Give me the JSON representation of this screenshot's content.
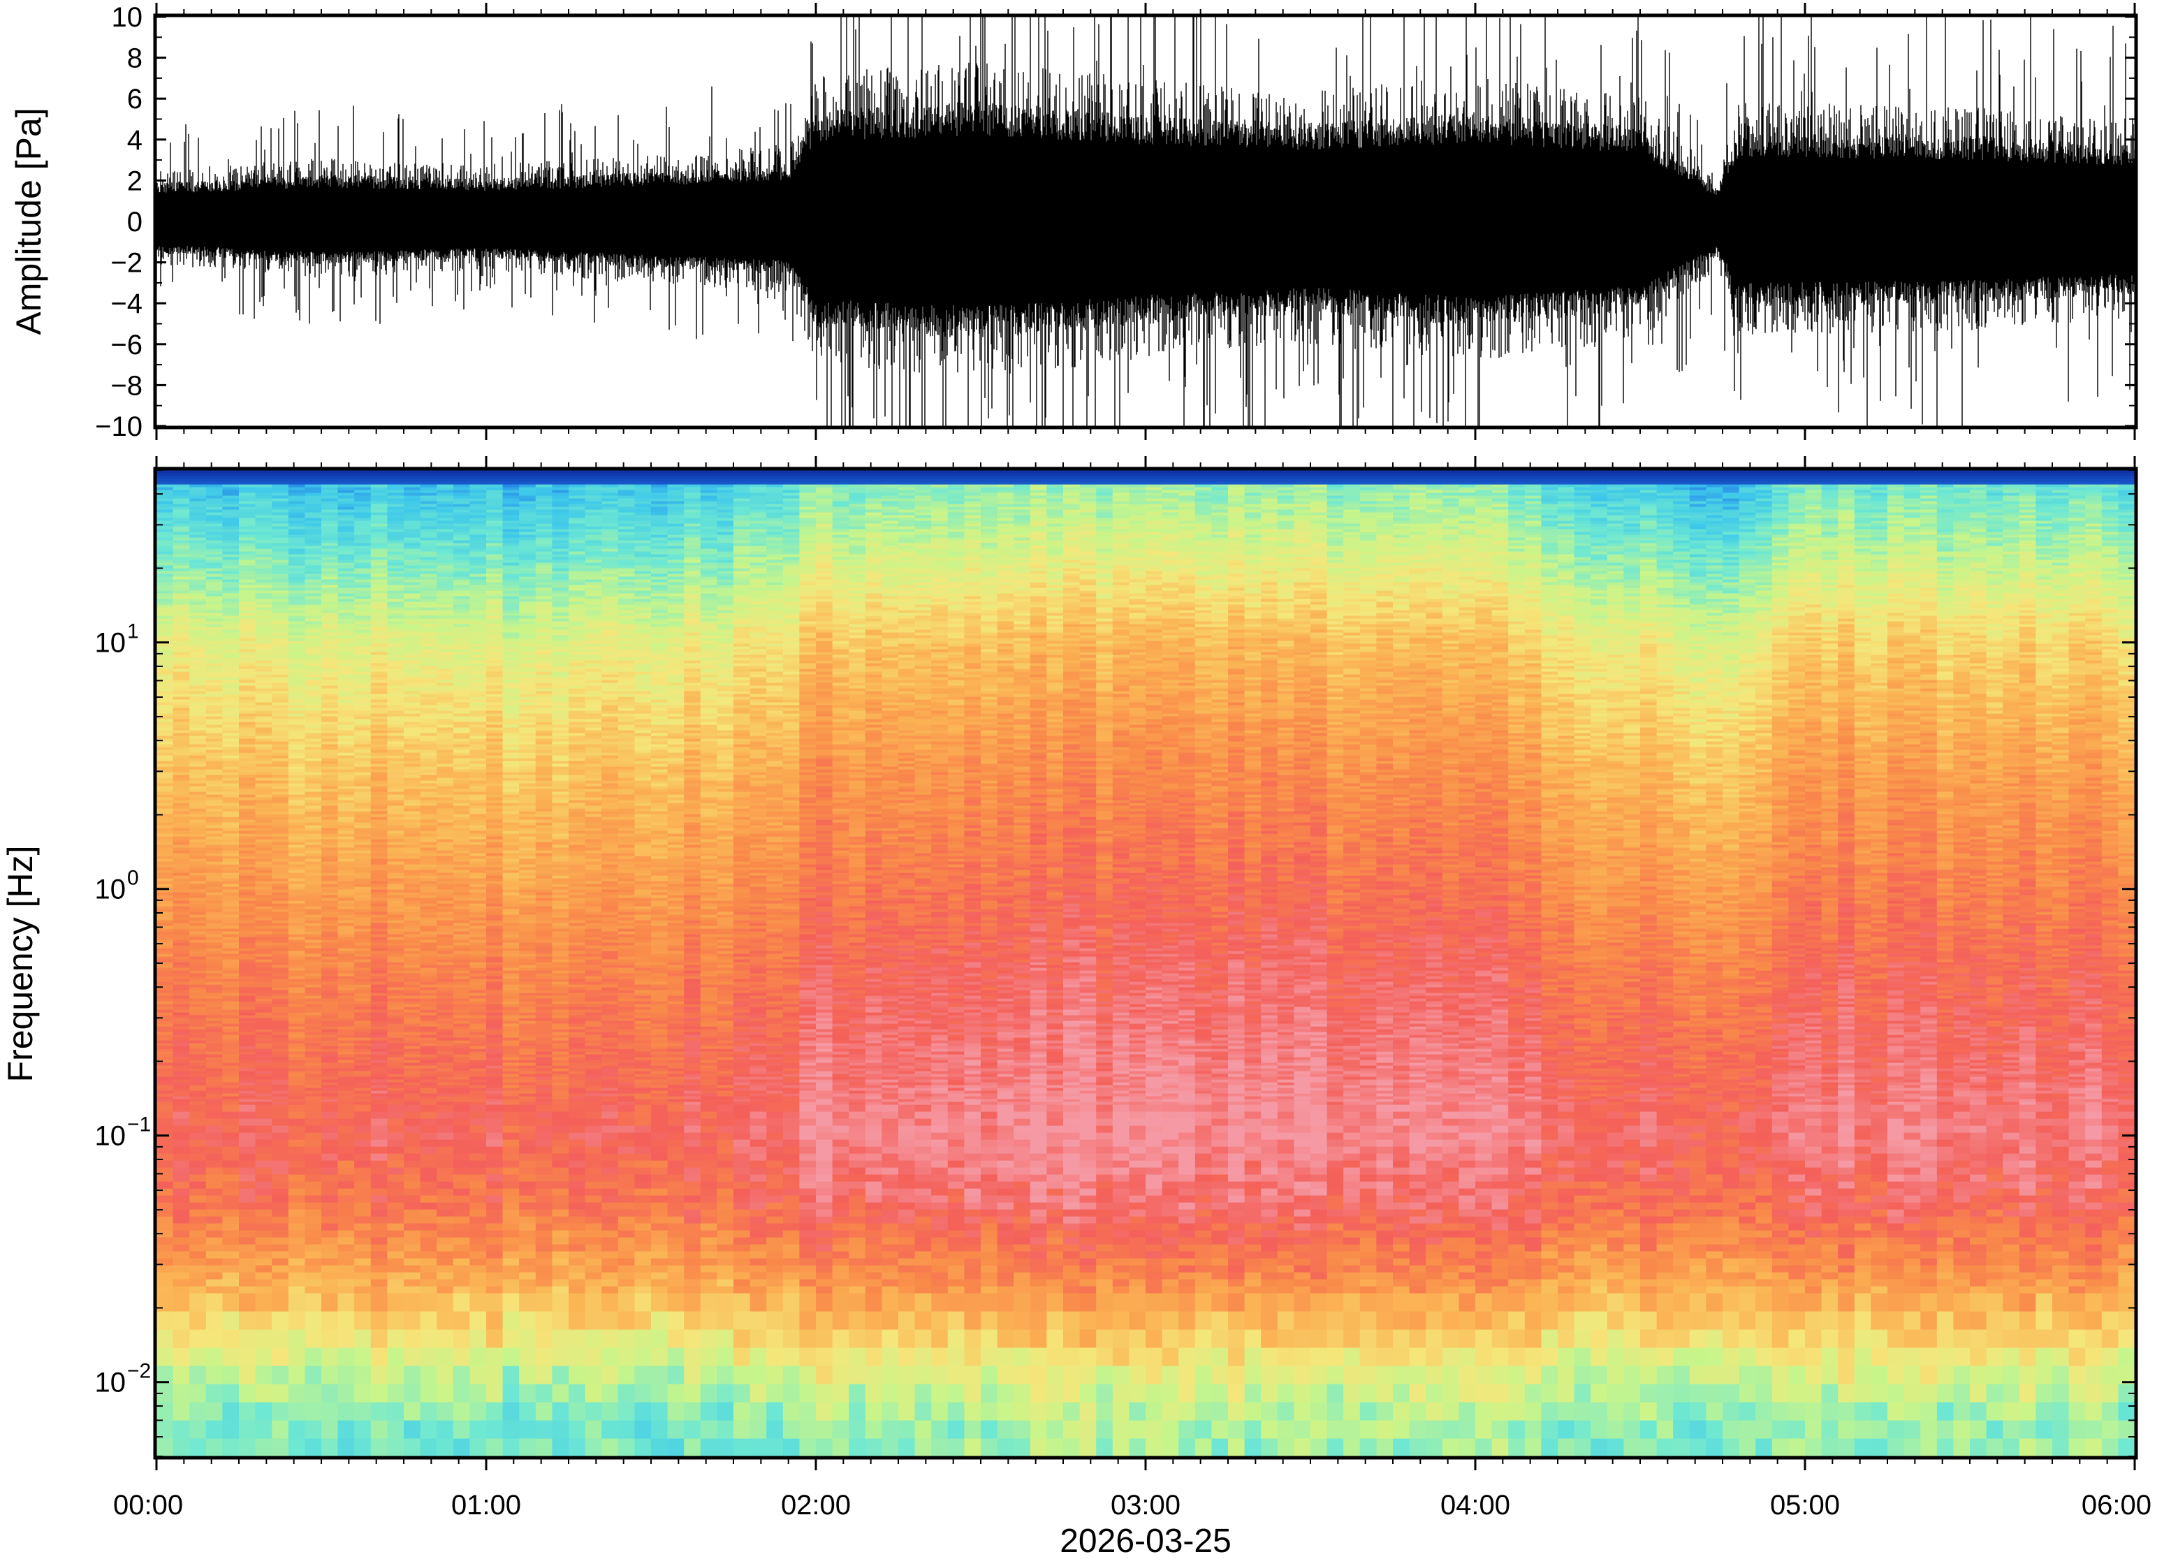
{
  "figure": {
    "date_label": "2026-03-25"
  },
  "chart_data": [
    {
      "type": "line",
      "panel": "waveform",
      "ylabel": "Amplitude [Pa]",
      "ylim": [
        -10,
        10
      ],
      "yticks": [
        -10,
        -8,
        -6,
        -4,
        -2,
        0,
        2,
        4,
        6,
        8,
        10
      ],
      "ytick_labels": [
        "−10",
        "−8",
        "−6",
        "−4",
        "−2",
        "0",
        "2",
        "4",
        "6",
        "8",
        "10"
      ],
      "x_range": [
        "00:00",
        "06:00"
      ],
      "grid": false,
      "series": [
        {
          "envelope": [
            {
              "time": "00:00",
              "min": -1.5,
              "max": 1.8
            },
            {
              "time": "00:30",
              "min": -2.0,
              "max": 2.2
            },
            {
              "time": "01:00",
              "min": -1.7,
              "max": 2.0
            },
            {
              "time": "01:30",
              "min": -2.2,
              "max": 2.3
            },
            {
              "time": "01:55",
              "min": -2.5,
              "max": 2.7
            },
            {
              "time": "02:00",
              "min": -5.0,
              "max": 5.2
            },
            {
              "time": "02:30",
              "min": -5.5,
              "max": 5.6
            },
            {
              "time": "03:00",
              "min": -4.8,
              "max": 5.0
            },
            {
              "time": "03:30",
              "min": -4.3,
              "max": 4.6
            },
            {
              "time": "04:00",
              "min": -4.9,
              "max": 5.1
            },
            {
              "time": "04:30",
              "min": -4.2,
              "max": 4.4
            },
            {
              "time": "04:44",
              "min": -1.6,
              "max": 1.6
            },
            {
              "time": "04:48",
              "min": -4.0,
              "max": 4.2
            },
            {
              "time": "05:30",
              "min": -3.8,
              "max": 4.0
            },
            {
              "time": "06:00",
              "min": -3.4,
              "max": 3.6
            }
          ]
        }
      ]
    },
    {
      "type": "heatmap",
      "panel": "spectrogram",
      "ylabel": "Frequency [Hz]",
      "yscale": "log",
      "ylim": [
        0.005,
        50
      ],
      "yticks": [
        0.01,
        0.1,
        1,
        10
      ],
      "ytick_labels": [
        {
          "base": "10",
          "exp": "−2"
        },
        {
          "base": "10",
          "exp": "−1"
        },
        {
          "base": "10",
          "exp": "0"
        },
        {
          "base": "10",
          "exp": "1"
        }
      ],
      "x_range": [
        "00:00",
        "06:00"
      ],
      "xticks": [
        "00:00",
        "01:00",
        "02:00",
        "03:00",
        "04:00",
        "05:00",
        "06:00"
      ],
      "xlabel": "",
      "grid": false,
      "color_stops": [
        "#0a1a8c",
        "#1e73e6",
        "#3ec8ea",
        "#6fe8d2",
        "#c8f58a",
        "#f5e67a",
        "#fbb455",
        "#f98a4a",
        "#f4605a",
        "#f59aa4"
      ],
      "spectral_profile": [
        {
          "frequency": 0.006,
          "level": 0.35
        },
        {
          "frequency": 0.01,
          "level": 0.45
        },
        {
          "frequency": 0.015,
          "level": 0.58
        },
        {
          "frequency": 0.025,
          "level": 0.7
        },
        {
          "frequency": 0.05,
          "level": 0.84
        },
        {
          "frequency": 0.1,
          "level": 0.9
        },
        {
          "frequency": 0.2,
          "level": 0.86
        },
        {
          "frequency": 0.5,
          "level": 0.8
        },
        {
          "frequency": 1,
          "level": 0.74
        },
        {
          "frequency": 3,
          "level": 0.65
        },
        {
          "frequency": 10,
          "level": 0.52
        },
        {
          "frequency": 20,
          "level": 0.38
        },
        {
          "frequency": 40,
          "level": 0.25
        }
      ],
      "activity_by_time": [
        {
          "time": "00:00",
          "level": 0.0
        },
        {
          "time": "01:00",
          "level": -0.02
        },
        {
          "time": "01:50",
          "level": 0.02
        },
        {
          "time": "02:00",
          "level": 0.08
        },
        {
          "time": "03:00",
          "level": 0.1
        },
        {
          "time": "04:00",
          "level": 0.09
        },
        {
          "time": "04:45",
          "level": -0.05
        },
        {
          "time": "05:00",
          "level": 0.07
        },
        {
          "time": "06:00",
          "level": 0.05
        }
      ]
    }
  ]
}
